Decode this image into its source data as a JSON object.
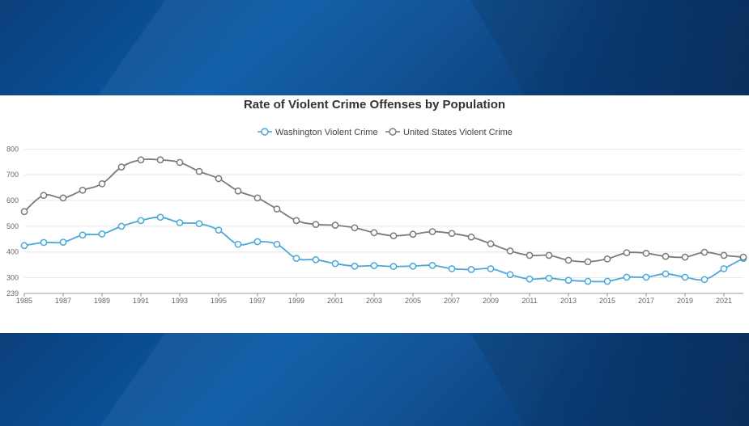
{
  "chart_data": {
    "type": "line",
    "title": "Rate of Violent Crime Offenses by Population",
    "xlabel": "",
    "ylabel": "",
    "ylim": [
      239,
      820
    ],
    "y_ticks": [
      800,
      700,
      600,
      500,
      400,
      300,
      239
    ],
    "x_ticks": [
      "1985",
      "1987",
      "1989",
      "1991",
      "1993",
      "1995",
      "1997",
      "1999",
      "2001",
      "2003",
      "2005",
      "2007",
      "2009",
      "2011",
      "2013",
      "2015",
      "2017",
      "2019",
      "2021"
    ],
    "x": [
      1985,
      1986,
      1987,
      1988,
      1989,
      1990,
      1991,
      1992,
      1993,
      1994,
      1995,
      1996,
      1997,
      1998,
      1999,
      2000,
      2001,
      2002,
      2003,
      2004,
      2005,
      2006,
      2007,
      2008,
      2009,
      2010,
      2011,
      2012,
      2013,
      2014,
      2015,
      2016,
      2017,
      2018,
      2019,
      2020,
      2021,
      2022
    ],
    "grid": true,
    "legend_position": "top-center",
    "series": [
      {
        "name": "Washington Violent Crime",
        "color": "#4aa8d8",
        "values": [
          425,
          437,
          438,
          466,
          470,
          500,
          522,
          535,
          514,
          510,
          485,
          430,
          440,
          430,
          375,
          370,
          355,
          345,
          347,
          344,
          345,
          348,
          335,
          332,
          335,
          312,
          295,
          298,
          290,
          286,
          286,
          302,
          302,
          315,
          302,
          293,
          335,
          375
        ]
      },
      {
        "name": "United States Violent Crime",
        "color": "#7a7a7a",
        "values": [
          557,
          620,
          610,
          640,
          665,
          730,
          758,
          758,
          748,
          713,
          685,
          637,
          610,
          567,
          522,
          507,
          504,
          494,
          475,
          463,
          469,
          479,
          472,
          458,
          432,
          404,
          387,
          387,
          368,
          362,
          373,
          397,
          395,
          383,
          380,
          399,
          387,
          380
        ]
      }
    ]
  }
}
